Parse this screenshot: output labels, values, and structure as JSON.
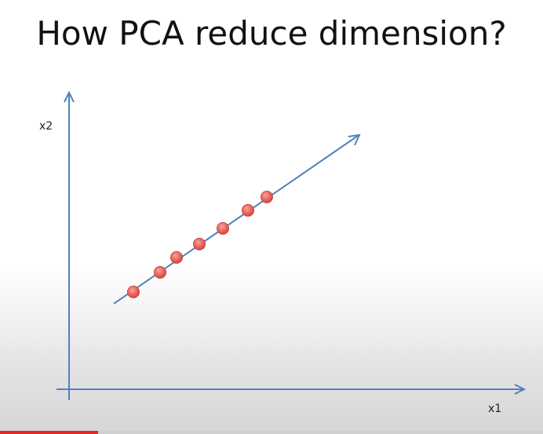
{
  "slide": {
    "title": "How PCA reduce dimension?"
  },
  "colors": {
    "axis": "#4f81bd",
    "point_fill": "#e8675e",
    "point_stroke": "#c9453c",
    "background": "#ffffff",
    "progress": "#e52a24"
  },
  "diagram": {
    "x_axis_label": "x1",
    "y_axis_label": "x2",
    "points_count_visible": 7
  },
  "video_progress": {
    "fraction": 0.18
  }
}
